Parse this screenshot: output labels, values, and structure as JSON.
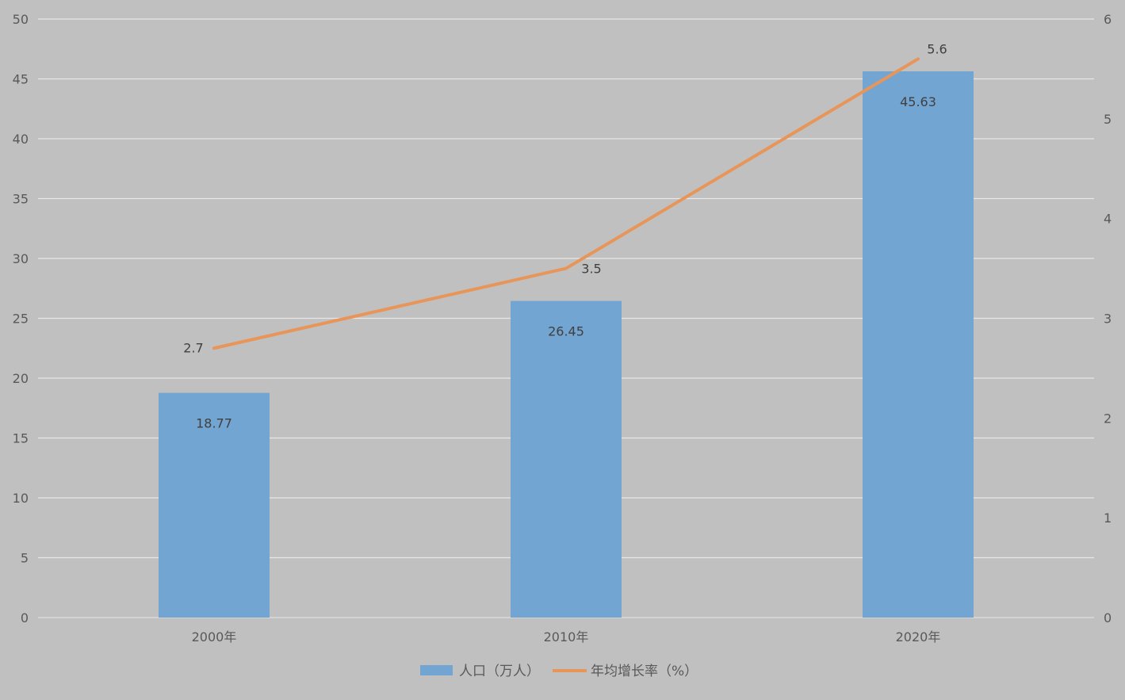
{
  "chart_data": {
    "type": "bar",
    "categories": [
      "2000年",
      "2010年",
      "2020年"
    ],
    "series": [
      {
        "name": "人口（万人）",
        "type": "bar",
        "axis": "left",
        "values": [
          18.77,
          26.45,
          45.63
        ],
        "labels": [
          "18.77",
          "26.45",
          "45.63"
        ],
        "color": "#73a5d3"
      },
      {
        "name": "年均增长率（%）",
        "type": "line",
        "axis": "right",
        "values": [
          2.7,
          3.5,
          5.6
        ],
        "labels": [
          "2.7",
          "3.5",
          "5.6"
        ],
        "color": "#e8955a"
      }
    ],
    "left_axis": {
      "min": 0,
      "max": 50,
      "ticks": [
        "0",
        "5",
        "10",
        "15",
        "20",
        "25",
        "30",
        "35",
        "40",
        "45",
        "50"
      ]
    },
    "right_axis": {
      "min": 0,
      "max": 6,
      "ticks": [
        "0",
        "1",
        "2",
        "3",
        "4",
        "5",
        "6"
      ]
    },
    "grid": true,
    "legend_position": "bottom",
    "colors": {
      "background": "#c0c0c0",
      "grid": "#e6e6e6",
      "text": "#595959"
    }
  }
}
